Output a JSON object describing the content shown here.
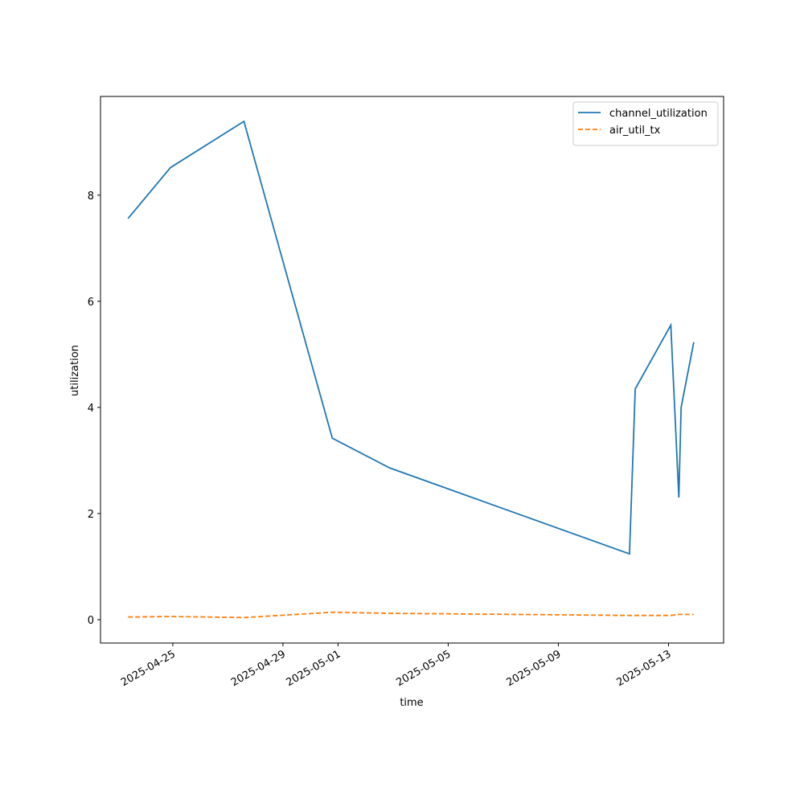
{
  "chart_data": {
    "type": "line",
    "x_label": "time",
    "y_label": "utilization",
    "x": [
      "2025-04-23T09:00",
      "2025-04-24T22:00",
      "2025-04-27T14:00",
      "2025-04-30T19:00",
      "2025-05-02T21:00",
      "2025-05-11T14:00",
      "2025-05-11T19:00",
      "2025-05-13T02:00",
      "2025-05-13T09:00",
      "2025-05-13T11:00",
      "2025-05-13T22:00"
    ],
    "series": [
      {
        "name": "channel_utilization",
        "color": "#1f77b4",
        "linestyle": "solid",
        "values": [
          7.56,
          8.52,
          9.39,
          3.42,
          2.86,
          1.24,
          4.35,
          5.55,
          2.3,
          4.0,
          5.23
        ]
      },
      {
        "name": "air_util_tx",
        "color": "#ff7f0e",
        "linestyle": "dashed",
        "values": [
          0.05,
          0.06,
          0.04,
          0.14,
          0.12,
          0.08,
          0.08,
          0.08,
          0.1,
          0.1,
          0.1
        ]
      }
    ],
    "xlim": [
      "2025-04-22T09:00",
      "2025-05-15T00:00"
    ],
    "xticks": [
      "2025-04-25",
      "2025-04-29",
      "2025-05-01",
      "2025-05-05",
      "2025-05-09",
      "2025-05-13"
    ],
    "ylim": [
      -0.44,
      9.86
    ],
    "yticks": [
      0,
      2,
      4,
      6,
      8
    ],
    "grid": false,
    "legend": "upper right"
  }
}
